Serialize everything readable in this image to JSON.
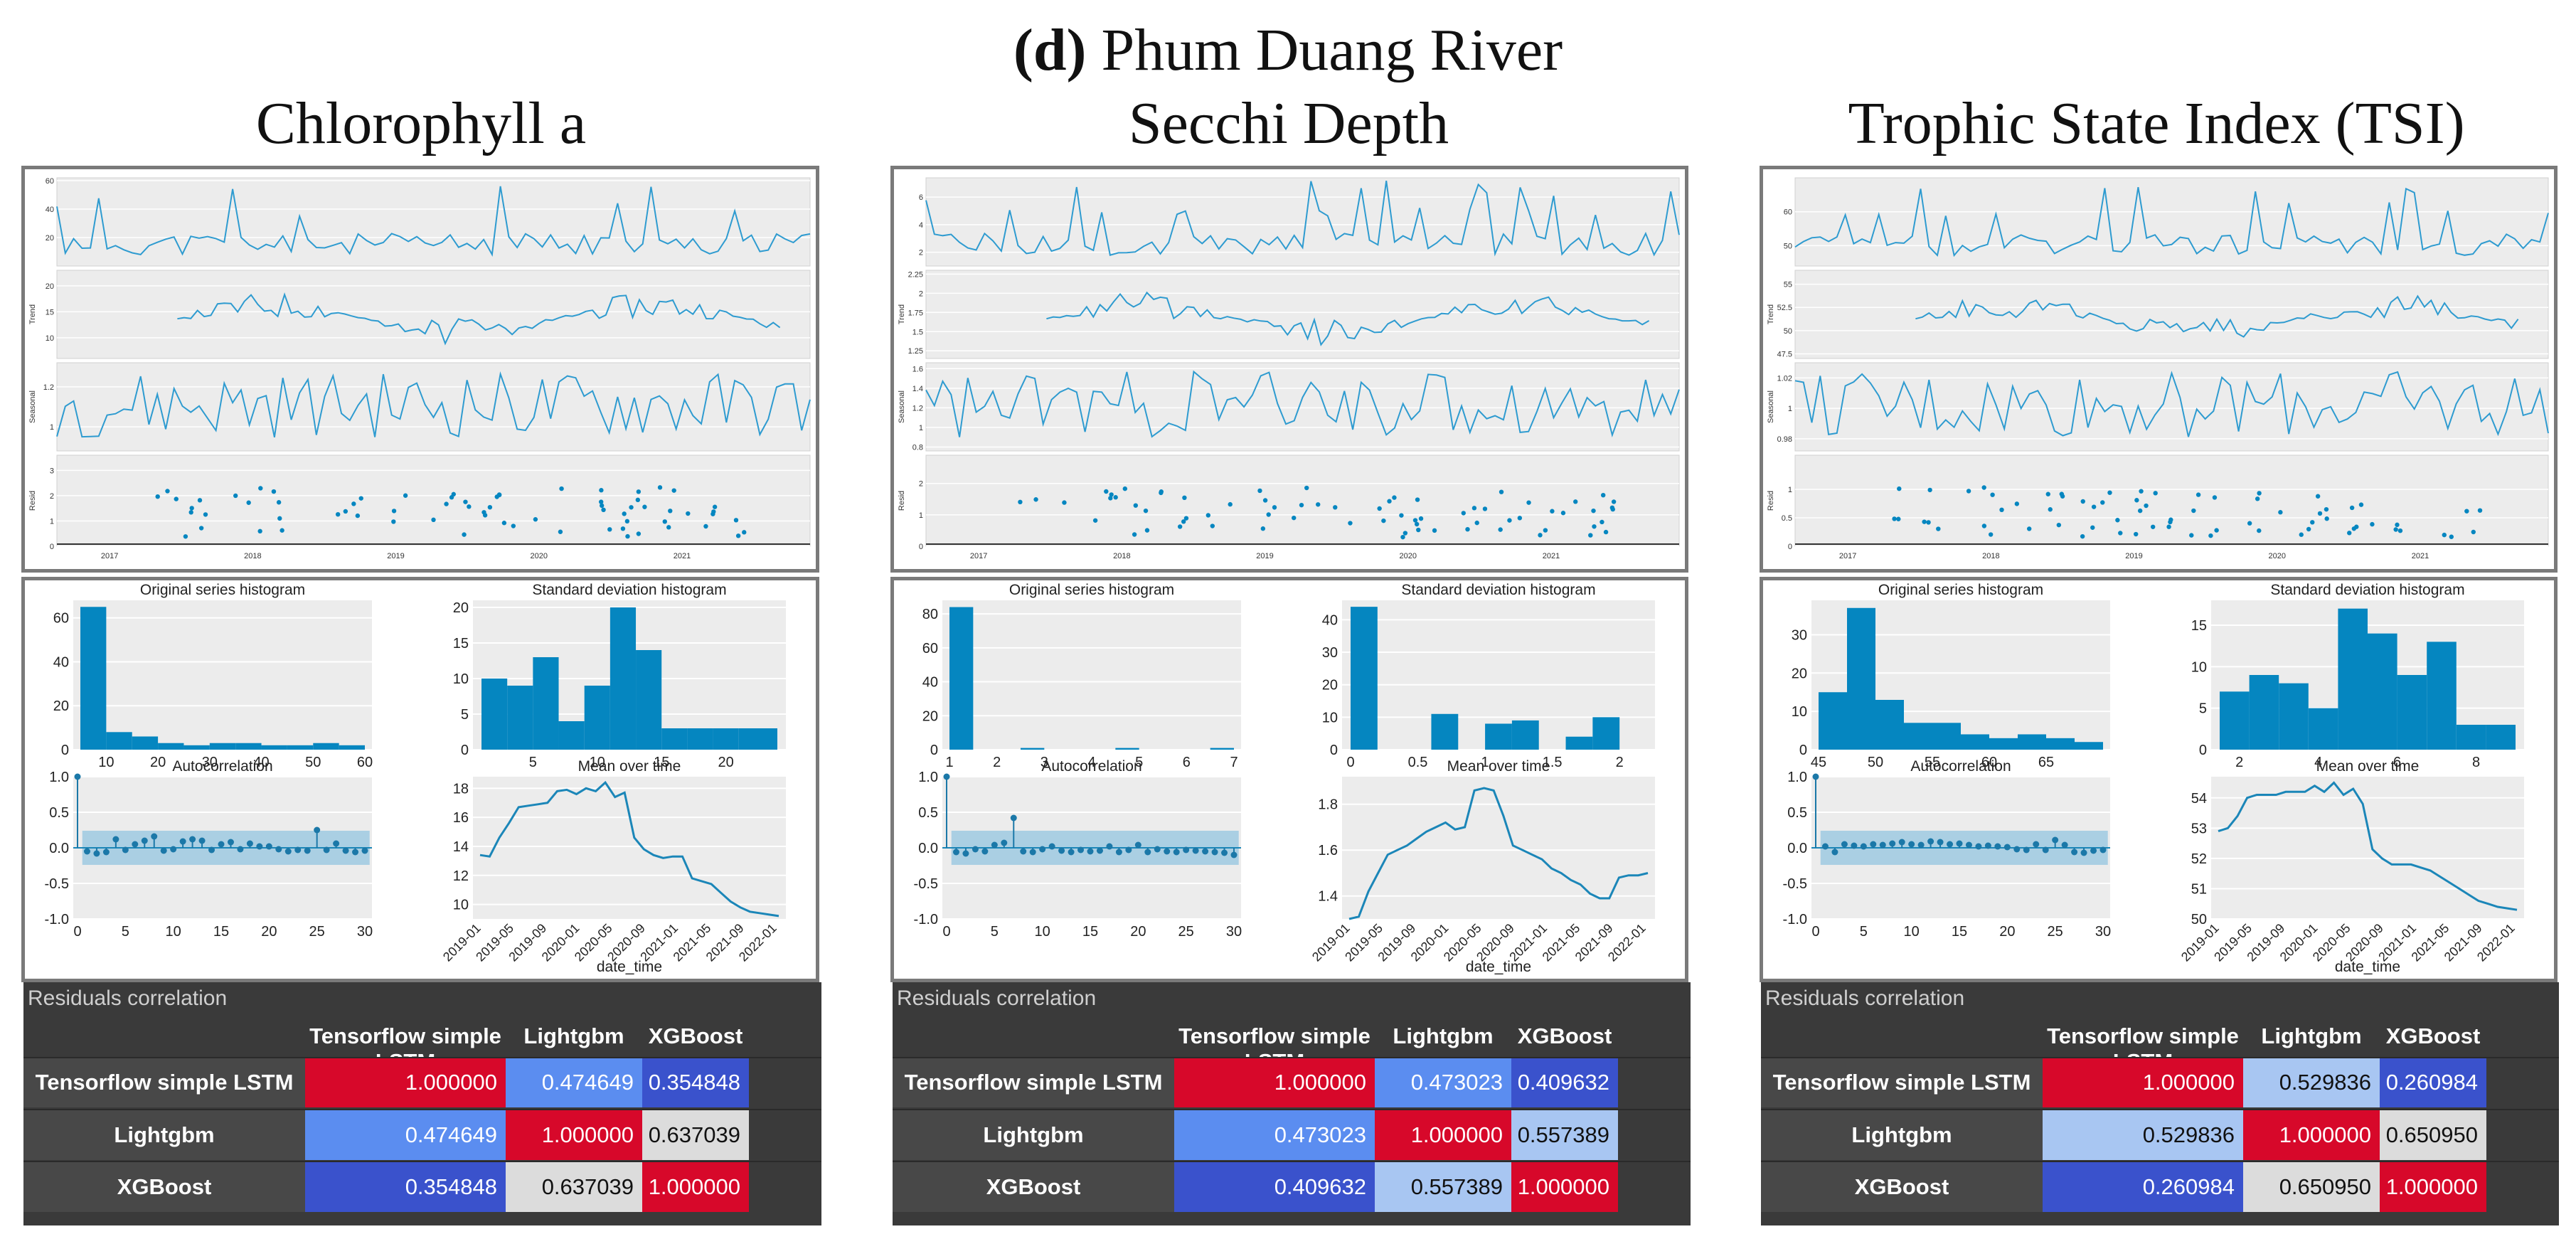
{
  "figure": {
    "label_bold": "d",
    "label_rest": " Phum Duang River",
    "columns": [
      "Chlorophyll a",
      "Secchi Depth",
      "Trophic State Index (TSI)"
    ]
  },
  "corr_labels": {
    "title": "Residuals correlation",
    "cols": [
      "Tensorflow simple LSTM",
      "Lightgbm",
      "XGBoost"
    ],
    "rows": [
      "Tensorflow simple LSTM",
      "Lightgbm",
      "XGBoost"
    ]
  },
  "chart_data": [
    {
      "type": "line",
      "title": "Chlorophyll a",
      "decomposition": {
        "x_ticks": [
          "2017",
          "2018",
          "2019",
          "2020",
          "2021"
        ],
        "panels": [
          {
            "ylabel": "",
            "yticks": [
              20,
              40,
              60
            ],
            "ylim": [
              0,
              62
            ]
          },
          {
            "ylabel": "Trend",
            "yticks": [
              10,
              15,
              20
            ],
            "ylim": [
              6,
              23
            ]
          },
          {
            "ylabel": "Seasonal",
            "yticks": [
              1.0,
              1.2
            ],
            "ylim": [
              0.88,
              1.32
            ]
          },
          {
            "ylabel": "Resid",
            "yticks": [
              0,
              1,
              2,
              3
            ],
            "ylim": [
              0,
              3.6
            ]
          }
        ]
      },
      "hist_original": {
        "title": "Original series histogram",
        "bins": [
          5,
          10,
          15,
          20,
          25,
          30,
          35,
          40,
          45,
          50,
          55,
          60
        ],
        "counts": [
          65,
          8,
          6,
          3,
          2,
          3,
          3,
          2,
          2,
          3,
          2
        ],
        "xticks": [
          10,
          20,
          30,
          40,
          50,
          60
        ],
        "yticks": [
          0,
          20,
          40,
          60
        ],
        "ylim": [
          0,
          68
        ]
      },
      "hist_std": {
        "title": "Standard deviation histogram",
        "bins": [
          1,
          3,
          5,
          7,
          9,
          11,
          13,
          15,
          17,
          19,
          21,
          24
        ],
        "counts": [
          10,
          9,
          13,
          4,
          9,
          20,
          14,
          3,
          3,
          3,
          3
        ],
        "xticks": [
          5,
          10,
          15,
          20
        ],
        "yticks": [
          0,
          5,
          10,
          15,
          20
        ],
        "ylim": [
          0,
          21
        ]
      },
      "autocorrelation": {
        "title": "Autocorrelation",
        "lags": [
          0,
          1,
          2,
          3,
          4,
          5,
          6,
          7,
          8,
          9,
          10,
          11,
          12,
          13,
          14,
          15,
          16,
          17,
          18,
          19,
          20,
          21,
          22,
          23,
          24,
          25,
          26,
          27,
          28,
          29,
          30
        ],
        "values": [
          1.0,
          -0.05,
          -0.08,
          -0.06,
          0.12,
          -0.03,
          0.05,
          0.1,
          0.16,
          -0.04,
          -0.02,
          0.09,
          0.12,
          0.1,
          -0.03,
          0.05,
          0.08,
          -0.02,
          0.06,
          0.02,
          0.02,
          -0.02,
          -0.05,
          -0.03,
          -0.04,
          0.25,
          -0.03,
          0.06,
          -0.04,
          -0.06,
          -0.04
        ],
        "band": 0.24,
        "xticks": [
          0,
          5,
          10,
          15,
          20,
          25,
          30
        ],
        "yticks": [
          -1.0,
          -0.5,
          0.0,
          0.5,
          1.0
        ]
      },
      "mean_over_time": {
        "title": "Mean over time",
        "xlabel": "date_time",
        "xticks": [
          "2019-01",
          "2019-05",
          "2019-09",
          "2020-01",
          "2020-05",
          "2020-09",
          "2021-01",
          "2021-05",
          "2021-09",
          "2022-01"
        ],
        "yticks": [
          10,
          12,
          14,
          16,
          18
        ],
        "ylim": [
          9,
          18.8
        ],
        "values": [
          13.4,
          13.3,
          14.6,
          15.6,
          16.7,
          16.8,
          16.9,
          17.0,
          17.8,
          17.9,
          17.6,
          18.0,
          17.8,
          18.4,
          17.4,
          17.7,
          14.6,
          13.8,
          13.4,
          13.2,
          13.3,
          13.3,
          11.8,
          11.6,
          11.4,
          10.8,
          10.2,
          9.8,
          9.5,
          9.4,
          9.3,
          9.2
        ]
      },
      "residuals_correlation": [
        [
          1.0,
          0.474649,
          0.354848
        ],
        [
          0.474649,
          1.0,
          0.637039
        ],
        [
          0.354848,
          0.637039,
          1.0
        ]
      ]
    },
    {
      "type": "line",
      "title": "Secchi Depth",
      "decomposition": {
        "x_ticks": [
          "2017",
          "2018",
          "2019",
          "2020",
          "2021"
        ],
        "panels": [
          {
            "ylabel": "",
            "yticks": [
              2,
              4,
              6
            ],
            "ylim": [
              1,
              7.4
            ]
          },
          {
            "ylabel": "Trend",
            "yticks": [
              1.25,
              1.5,
              1.75,
              2.0,
              2.25
            ],
            "ylim": [
              1.15,
              2.3
            ]
          },
          {
            "ylabel": "Seasonal",
            "yticks": [
              0.8,
              1.0,
              1.2,
              1.4,
              1.6
            ],
            "ylim": [
              0.76,
              1.66
            ]
          },
          {
            "ylabel": "Resid",
            "yticks": [
              0,
              1,
              2
            ],
            "ylim": [
              0,
              2.9
            ]
          }
        ]
      },
      "hist_original": {
        "title": "Original series histogram",
        "bins": [
          1.0,
          1.5,
          2.0,
          2.5,
          3.0,
          3.5,
          4.0,
          4.5,
          5.0,
          5.5,
          6.0,
          6.5,
          7.0
        ],
        "counts": [
          84,
          0,
          0,
          1,
          0,
          0,
          0,
          1,
          0,
          0,
          0,
          1
        ],
        "xticks": [
          1,
          2,
          3,
          4,
          5,
          6,
          7
        ],
        "yticks": [
          0,
          20,
          40,
          60,
          80
        ],
        "ylim": [
          0,
          88
        ]
      },
      "hist_std": {
        "title": "Standard deviation histogram",
        "bins": [
          0.0,
          0.2,
          0.4,
          0.6,
          0.8,
          1.0,
          1.2,
          1.4,
          1.6,
          1.8,
          2.0,
          2.2
        ],
        "counts": [
          44,
          0,
          0,
          11,
          0,
          8,
          9,
          0,
          4,
          10,
          0
        ],
        "xticks": [
          0.0,
          0.5,
          1.0,
          1.5,
          2.0
        ],
        "yticks": [
          0,
          10,
          20,
          30,
          40
        ],
        "ylim": [
          0,
          46
        ]
      },
      "autocorrelation": {
        "title": "Autocorrelation",
        "lags": [
          0,
          1,
          2,
          3,
          4,
          5,
          6,
          7,
          8,
          9,
          10,
          11,
          12,
          13,
          14,
          15,
          16,
          17,
          18,
          19,
          20,
          21,
          22,
          23,
          24,
          25,
          26,
          27,
          28,
          29,
          30
        ],
        "values": [
          1.0,
          -0.06,
          -0.08,
          -0.02,
          -0.05,
          0.04,
          0.07,
          0.42,
          -0.05,
          -0.06,
          -0.02,
          0.02,
          -0.04,
          -0.06,
          -0.03,
          -0.05,
          -0.04,
          0.02,
          -0.06,
          -0.03,
          0.04,
          -0.06,
          -0.02,
          -0.05,
          -0.06,
          -0.03,
          -0.04,
          -0.05,
          -0.06,
          -0.07,
          -0.1
        ],
        "band": 0.24,
        "xticks": [
          0,
          5,
          10,
          15,
          20,
          25,
          30
        ],
        "yticks": [
          -1.0,
          -0.5,
          0.0,
          0.5,
          1.0
        ]
      },
      "mean_over_time": {
        "title": "Mean over time",
        "xlabel": "date_time",
        "xticks": [
          "2019-01",
          "2019-05",
          "2019-09",
          "2020-01",
          "2020-05",
          "2020-09",
          "2021-01",
          "2021-05",
          "2021-09",
          "2022-01"
        ],
        "yticks": [
          1.4,
          1.6,
          1.8
        ],
        "ylim": [
          1.3,
          1.92
        ],
        "values": [
          1.3,
          1.31,
          1.42,
          1.5,
          1.58,
          1.6,
          1.62,
          1.65,
          1.68,
          1.7,
          1.72,
          1.69,
          1.7,
          1.86,
          1.87,
          1.86,
          1.75,
          1.62,
          1.6,
          1.58,
          1.56,
          1.52,
          1.5,
          1.47,
          1.45,
          1.41,
          1.39,
          1.39,
          1.48,
          1.49,
          1.49,
          1.5
        ]
      },
      "residuals_correlation": [
        [
          1.0,
          0.473023,
          0.409632
        ],
        [
          0.473023,
          1.0,
          0.557389
        ],
        [
          0.409632,
          0.557389,
          1.0
        ]
      ]
    },
    {
      "type": "line",
      "title": "Trophic State Index (TSI)",
      "decomposition": {
        "x_ticks": [
          "2017",
          "2018",
          "2019",
          "2020",
          "2021"
        ],
        "panels": [
          {
            "ylabel": "",
            "yticks": [
              50,
              60
            ],
            "ylim": [
              44,
              70
            ]
          },
          {
            "ylabel": "Trend",
            "yticks": [
              47.5,
              50.0,
              52.5,
              55.0
            ],
            "ylim": [
              47,
              56.5
            ]
          },
          {
            "ylabel": "Seasonal",
            "yticks": [
              0.98,
              1.0,
              1.02
            ],
            "ylim": [
              0.972,
              1.03
            ]
          },
          {
            "ylabel": "Resid",
            "yticks": [
              0.0,
              0.5,
              1.0
            ],
            "ylim": [
              0,
              1.6
            ]
          }
        ]
      },
      "hist_original": {
        "title": "Original series histogram",
        "bins": [
          45,
          47.5,
          50,
          52.5,
          55,
          57.5,
          60,
          62.5,
          65,
          67.5,
          70
        ],
        "counts": [
          15,
          37,
          13,
          7,
          7,
          4,
          3,
          4,
          3,
          2
        ],
        "xticks": [
          45,
          50,
          55,
          60,
          65
        ],
        "yticks": [
          0,
          10,
          20,
          30
        ],
        "ylim": [
          0,
          39
        ]
      },
      "hist_std": {
        "title": "Standard deviation histogram",
        "bins": [
          1.5,
          2.25,
          3.0,
          3.75,
          4.5,
          5.25,
          6.0,
          6.75,
          7.5,
          8.25,
          9.0
        ],
        "counts": [
          7,
          9,
          8,
          5,
          17,
          14,
          9,
          13,
          3,
          3
        ],
        "xticks": [
          2,
          4,
          6,
          8
        ],
        "yticks": [
          0,
          5,
          10,
          15
        ],
        "ylim": [
          0,
          18
        ]
      },
      "autocorrelation": {
        "title": "Autocorrelation",
        "lags": [
          0,
          1,
          2,
          3,
          4,
          5,
          6,
          7,
          8,
          9,
          10,
          11,
          12,
          13,
          14,
          15,
          16,
          17,
          18,
          19,
          20,
          21,
          22,
          23,
          24,
          25,
          26,
          27,
          28,
          29,
          30
        ],
        "values": [
          1.0,
          0.02,
          -0.06,
          0.05,
          0.03,
          0.02,
          0.05,
          0.04,
          0.06,
          0.08,
          0.05,
          0.04,
          0.09,
          0.08,
          0.05,
          0.06,
          0.04,
          0.02,
          0.03,
          0.02,
          0.01,
          -0.02,
          -0.03,
          0.05,
          -0.03,
          0.11,
          0.04,
          -0.06,
          -0.07,
          -0.04,
          -0.03
        ],
        "band": 0.24,
        "xticks": [
          0,
          5,
          10,
          15,
          20,
          25,
          30
        ],
        "yticks": [
          -1.0,
          -0.5,
          0.0,
          0.5,
          1.0
        ]
      },
      "mean_over_time": {
        "title": "Mean over time",
        "xlabel": "date_time",
        "xticks": [
          "2019-01",
          "2019-05",
          "2019-09",
          "2020-01",
          "2020-05",
          "2020-09",
          "2021-01",
          "2021-05",
          "2021-09",
          "2022-01"
        ],
        "yticks": [
          50,
          51,
          52,
          53,
          54
        ],
        "ylim": [
          50,
          54.7
        ],
        "values": [
          52.9,
          53.0,
          53.4,
          54.0,
          54.1,
          54.1,
          54.1,
          54.2,
          54.2,
          54.2,
          54.4,
          54.2,
          54.5,
          54.1,
          54.3,
          53.8,
          52.3,
          52.0,
          51.8,
          51.8,
          51.8,
          51.7,
          51.6,
          51.4,
          51.2,
          51.0,
          50.8,
          50.6,
          50.5,
          50.4,
          50.35,
          50.3
        ]
      },
      "residuals_correlation": [
        [
          1.0,
          0.529836,
          0.260984
        ],
        [
          0.529836,
          1.0,
          0.65095
        ],
        [
          0.260984,
          0.65095,
          1.0
        ]
      ]
    }
  ]
}
